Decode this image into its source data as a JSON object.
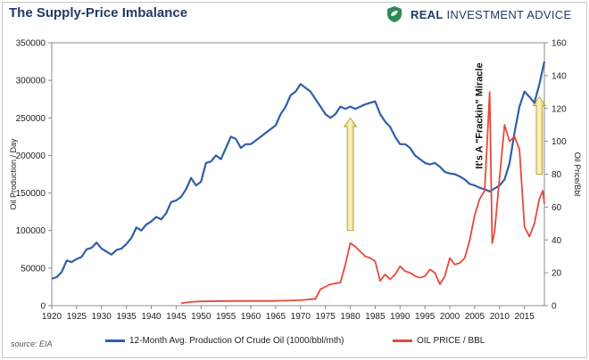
{
  "title": "The Supply-Price Imbalance",
  "brand": {
    "name_bold": "REAL",
    "name_rest": "INVESTMENT ADVICE",
    "icon": "shield-leaf-icon",
    "color": "#2e8b57"
  },
  "source": "source: EIA",
  "chart_data": {
    "type": "line",
    "title": "The Supply-Price Imbalance",
    "xlim": [
      1920,
      2019
    ],
    "x_ticks": [
      1920,
      1925,
      1930,
      1935,
      1940,
      1945,
      1950,
      1955,
      1960,
      1965,
      1970,
      1975,
      1980,
      1985,
      1990,
      1995,
      2000,
      2005,
      2010,
      2015
    ],
    "ylabel_left": "Oil Production / Day",
    "ylim_left": [
      0,
      350000
    ],
    "y_ticks_left": [
      0,
      50000,
      100000,
      150000,
      200000,
      250000,
      300000,
      350000
    ],
    "ylabel_right": "Oil Price/Bbl",
    "ylim_right": [
      0,
      160
    ],
    "y_ticks_right": [
      0,
      20,
      40,
      60,
      80,
      100,
      120,
      140,
      160
    ],
    "grid": false,
    "legend_position": "bottom",
    "series": [
      {
        "name": "12-Month Avg. Production Of Crude Oil (1000/bbl/mth)",
        "axis": "left",
        "color": "#2f5fa8",
        "x": [
          1920,
          1921,
          1922,
          1923,
          1924,
          1925,
          1926,
          1927,
          1928,
          1929,
          1930,
          1931,
          1932,
          1933,
          1934,
          1935,
          1936,
          1937,
          1938,
          1939,
          1940,
          1941,
          1942,
          1943,
          1944,
          1945,
          1946,
          1947,
          1948,
          1949,
          1950,
          1951,
          1952,
          1953,
          1954,
          1955,
          1956,
          1957,
          1958,
          1959,
          1960,
          1961,
          1962,
          1963,
          1964,
          1965,
          1966,
          1967,
          1968,
          1969,
          1970,
          1971,
          1972,
          1973,
          1974,
          1975,
          1976,
          1977,
          1978,
          1979,
          1980,
          1981,
          1982,
          1983,
          1984,
          1985,
          1986,
          1987,
          1988,
          1989,
          1990,
          1991,
          1992,
          1993,
          1994,
          1995,
          1996,
          1997,
          1998,
          1999,
          2000,
          2001,
          2002,
          2003,
          2004,
          2005,
          2006,
          2007,
          2008,
          2009,
          2010,
          2011,
          2012,
          2013,
          2014,
          2015,
          2016,
          2017,
          2018,
          2019
        ],
        "values": [
          36000,
          38000,
          45000,
          60000,
          58000,
          62000,
          65000,
          75000,
          77000,
          84000,
          76000,
          72000,
          68000,
          74000,
          76000,
          82000,
          90000,
          104000,
          100000,
          108000,
          112000,
          118000,
          115000,
          123000,
          138000,
          140000,
          145000,
          155000,
          170000,
          160000,
          165000,
          190000,
          192000,
          200000,
          195000,
          210000,
          225000,
          222000,
          210000,
          215000,
          215000,
          220000,
          225000,
          230000,
          235000,
          240000,
          255000,
          265000,
          280000,
          285000,
          295000,
          290000,
          285000,
          275000,
          265000,
          255000,
          250000,
          255000,
          265000,
          262000,
          265000,
          262000,
          265000,
          268000,
          270000,
          272000,
          255000,
          245000,
          238000,
          225000,
          215000,
          215000,
          210000,
          200000,
          195000,
          190000,
          188000,
          190000,
          185000,
          178000,
          176000,
          175000,
          172000,
          168000,
          162000,
          160000,
          157000,
          155000,
          152000,
          156000,
          160000,
          168000,
          190000,
          230000,
          265000,
          285000,
          278000,
          270000,
          295000,
          325000
        ]
      },
      {
        "name": "OIL PRICE / BBL",
        "axis": "right",
        "color": "#e8483c",
        "x": [
          1946,
          1948,
          1950,
          1955,
          1960,
          1965,
          1970,
          1971,
          1973,
          1974,
          1976,
          1978,
          1979,
          1980,
          1981,
          1982,
          1983,
          1984,
          1985,
          1986,
          1987,
          1988,
          1989,
          1990,
          1991,
          1992,
          1993,
          1994,
          1995,
          1996,
          1997,
          1998,
          1999,
          2000,
          2001,
          2002,
          2003,
          2004,
          2005,
          2006,
          2007,
          2008,
          2008.5,
          2009,
          2010,
          2011,
          2012,
          2013,
          2014,
          2015,
          2016,
          2017,
          2018,
          2018.7,
          2019
        ],
        "values": [
          1.5,
          2.2,
          2.6,
          2.8,
          2.9,
          2.9,
          3.3,
          3.6,
          4.2,
          10,
          13,
          14,
          25,
          38,
          36,
          33,
          30,
          29,
          27,
          15,
          19,
          16,
          19,
          24,
          21,
          20,
          18,
          17,
          18,
          22,
          20,
          13,
          18,
          29,
          25,
          26,
          29,
          40,
          55,
          65,
          70,
          130,
          38,
          45,
          78,
          110,
          100,
          103,
          95,
          48,
          42,
          50,
          65,
          70,
          62
        ]
      }
    ],
    "annotations": [
      {
        "text": "It's A \"Frackin\" Miracle",
        "x": 2006.5,
        "orientation": "vertical"
      },
      {
        "type": "arrow",
        "x": 1980,
        "from_left": 100000,
        "to_left": 250000
      },
      {
        "type": "arrow",
        "x": 2018,
        "from_left": 175000,
        "to_left": 278000
      }
    ]
  }
}
